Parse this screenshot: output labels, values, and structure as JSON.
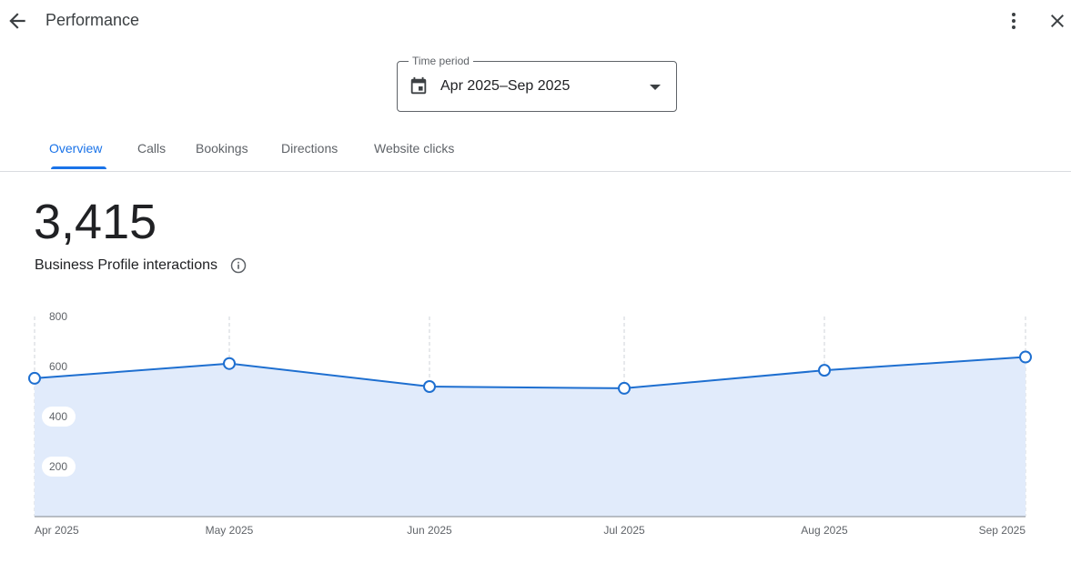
{
  "header": {
    "title": "Performance",
    "back_icon": "arrow-back-icon",
    "more_icon": "more-vert-icon",
    "close_icon": "close-icon"
  },
  "time_period": {
    "label": "Time period",
    "value": "Apr 2025–Sep 2025",
    "icon": "calendar-icon"
  },
  "tabs": [
    {
      "label": "Overview",
      "active": true
    },
    {
      "label": "Calls",
      "active": false
    },
    {
      "label": "Bookings",
      "active": false
    },
    {
      "label": "Directions",
      "active": false
    },
    {
      "label": "Website clicks",
      "active": false
    }
  ],
  "metric": {
    "value": "3,415",
    "label": "Business Profile interactions"
  },
  "colors": {
    "accent": "#1a73e8",
    "line": "#1e6fd0",
    "area": "#e1ebfb"
  },
  "chart_data": {
    "type": "area",
    "x": [
      "Apr 2025",
      "May 2025",
      "Jun 2025",
      "Jul 2025",
      "Aug 2025",
      "Sep 2025"
    ],
    "values": [
      553,
      612,
      520,
      513,
      585,
      638
    ],
    "y_ticks": [
      200,
      400,
      600,
      800
    ],
    "ylim": [
      0,
      800
    ],
    "grid": "vertical dashed",
    "legend": "none"
  }
}
